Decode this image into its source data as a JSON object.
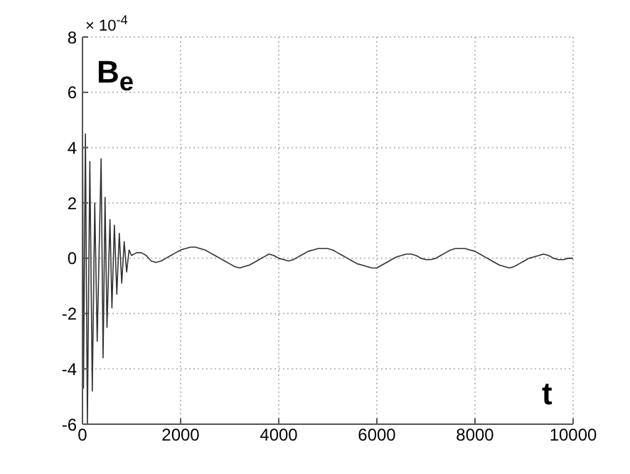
{
  "chart_data": {
    "type": "line",
    "xlabel": "t",
    "ylabel": "B$_{e}$",
    "annotations": [
      "× 10$^{-4}$"
    ],
    "x": [
      0,
      20,
      60,
      100,
      150,
      200,
      250,
      300,
      380,
      420,
      460,
      500,
      560,
      600,
      650,
      700,
      750,
      800,
      850,
      900,
      950,
      1000,
      1100,
      1200,
      1300,
      1400,
      1500,
      1600,
      1700,
      1800,
      1900,
      2000,
      2100,
      2200,
      2300,
      2400,
      2500,
      2600,
      2700,
      2800,
      2900,
      3000,
      3100,
      3200,
      3300,
      3400,
      3500,
      3600,
      3700,
      3800,
      3900,
      4000,
      4100,
      4200,
      4300,
      4400,
      4500,
      4600,
      4700,
      4800,
      4900,
      5000,
      5100,
      5200,
      5300,
      5400,
      5500,
      5600,
      5700,
      5800,
      5900,
      6000,
      6100,
      6200,
      6300,
      6400,
      6500,
      6600,
      6700,
      6800,
      6900,
      7000,
      7100,
      7200,
      7300,
      7400,
      7500,
      7600,
      7700,
      7800,
      7900,
      8000,
      8100,
      8200,
      8300,
      8400,
      8500,
      8600,
      8700,
      8800,
      8900,
      9000,
      9100,
      9200,
      9300,
      9400,
      9500,
      9600,
      9700,
      9800,
      9900,
      10000
    ],
    "series": [
      {
        "color": "#333333",
        "values": [
          6,
          -4.7,
          4.5,
          -6,
          3.5,
          -4.8,
          2,
          -3,
          3.6,
          -3.6,
          2.2,
          -2.5,
          1.4,
          -1.8,
          1.2,
          -1.3,
          0.9,
          -0.9,
          0.6,
          -0.5,
          0.3,
          0.1,
          0.2,
          0.2,
          0.1,
          -0.1,
          -0.15,
          -0.1,
          0,
          0.1,
          0.2,
          0.3,
          0.35,
          0.4,
          0.4,
          0.35,
          0.3,
          0.2,
          0.1,
          0,
          -0.1,
          -0.2,
          -0.3,
          -0.35,
          -0.3,
          -0.25,
          -0.15,
          -0.05,
          0.05,
          0.15,
          0.1,
          0,
          -0.05,
          -0.1,
          -0.05,
          0.05,
          0.15,
          0.25,
          0.3,
          0.35,
          0.35,
          0.35,
          0.3,
          0.2,
          0.1,
          0,
          -0.1,
          -0.2,
          -0.25,
          -0.3,
          -0.35,
          -0.35,
          -0.25,
          -0.15,
          -0.05,
          0.05,
          0.1,
          0.15,
          0.15,
          0.1,
          0,
          -0.05,
          -0.05,
          0,
          0.1,
          0.2,
          0.3,
          0.35,
          0.35,
          0.35,
          0.3,
          0.25,
          0.15,
          0.05,
          -0.05,
          -0.15,
          -0.25,
          -0.3,
          -0.35,
          -0.3,
          -0.2,
          -0.1,
          0,
          0.05,
          0.1,
          0.15,
          0.1,
          0,
          -0.05,
          -0.05,
          0,
          0
        ]
      }
    ],
    "xlim": [
      0,
      10000
    ],
    "xticks": [
      0,
      2000,
      4000,
      6000,
      8000,
      10000
    ],
    "ylim": [
      -6,
      8
    ],
    "yticks": [
      -6,
      -4,
      -2,
      0,
      2,
      4,
      6,
      8
    ],
    "grid": true,
    "marker": "none",
    "line_style": "solid"
  }
}
